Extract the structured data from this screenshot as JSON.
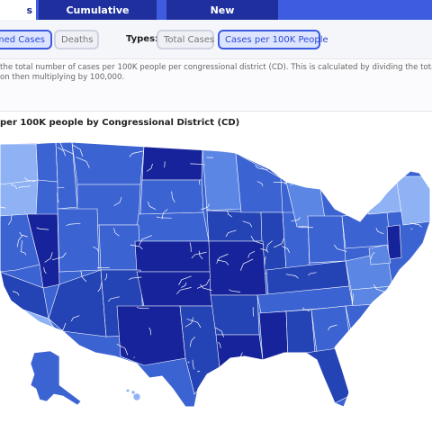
{
  "tabs": {
    "active_label": "s",
    "cumulative_label": "Cumulative",
    "new_label": "New"
  },
  "filters": {
    "confirmed_label": "rmed Cases",
    "deaths_label": "Deaths",
    "types_label": "Types:",
    "total_cases_label": "Total Cases",
    "per100k_label": "Cases per 100K People"
  },
  "description": {
    "line1": "the total number of cases per 100K people per congressional district (CD). This is calculated by dividing the tota",
    "line2": "on then multiplying by 100,000."
  },
  "map": {
    "title": "per 100K people by Congressional District (CD)",
    "palette": {
      "lightest": "#8fb2f5",
      "light": "#5c86e3",
      "medium": "#3b63d2",
      "dark": "#2443b4",
      "darkest": "#16239a",
      "border": "#ffffff"
    }
  }
}
